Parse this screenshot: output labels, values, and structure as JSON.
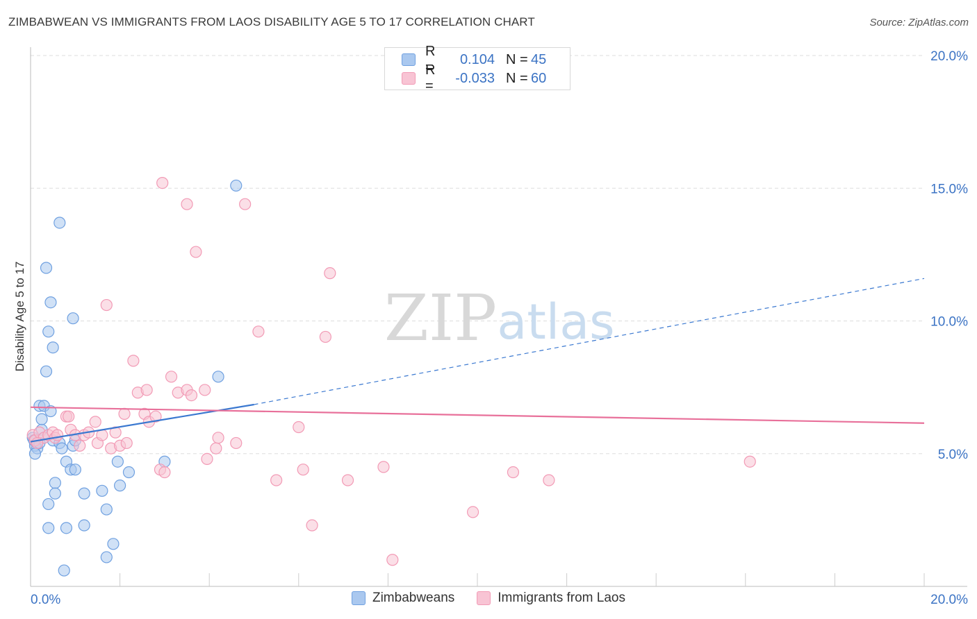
{
  "title": "ZIMBABWEAN VS IMMIGRANTS FROM LAOS DISABILITY AGE 5 TO 17 CORRELATION CHART",
  "source": "Source: ZipAtlas.com",
  "watermark": {
    "zip": "ZIP",
    "atlas": "atlas"
  },
  "legend": {
    "series1": {
      "r_label": "R =",
      "r_value": "0.104",
      "n_label": "N =",
      "n_value": "45"
    },
    "series2": {
      "r_label": "R =",
      "r_value": "-0.033",
      "n_label": "N =",
      "n_value": "60"
    }
  },
  "chart_data": {
    "type": "scatter",
    "title": "ZIMBABWEAN VS IMMIGRANTS FROM LAOS DISABILITY AGE 5 TO 17 CORRELATION CHART",
    "xlabel": "",
    "ylabel": "Disability Age 5 to 17",
    "xlim": [
      0,
      20
    ],
    "ylim": [
      0,
      20
    ],
    "x_tick_labels": [
      "0.0%",
      "20.0%"
    ],
    "y_ticks": [
      5,
      10,
      15,
      20
    ],
    "y_tick_labels": [
      "5.0%",
      "10.0%",
      "15.0%",
      "20.0%"
    ],
    "grid": true,
    "series": [
      {
        "name": "Zimbabweans",
        "color": "#6fa0e0",
        "fill": "#aac8ef",
        "line_color": "#3a78d0",
        "trend": {
          "x0": 0.0,
          "y0": 5.45,
          "x1": 5.0,
          "y1": 6.85,
          "dash_x1": 20.0,
          "dash_y1": 11.6
        },
        "points": [
          [
            0.05,
            5.6
          ],
          [
            0.1,
            5.3
          ],
          [
            0.08,
            5.5
          ],
          [
            0.15,
            5.2
          ],
          [
            0.1,
            5.0
          ],
          [
            0.2,
            5.4
          ],
          [
            0.25,
            5.9
          ],
          [
            0.2,
            6.8
          ],
          [
            0.3,
            6.8
          ],
          [
            0.25,
            6.3
          ],
          [
            0.45,
            6.6
          ],
          [
            0.35,
            8.1
          ],
          [
            0.4,
            9.6
          ],
          [
            0.5,
            9.0
          ],
          [
            0.35,
            12.0
          ],
          [
            0.45,
            10.7
          ],
          [
            0.65,
            13.7
          ],
          [
            0.95,
            10.1
          ],
          [
            0.5,
            5.5
          ],
          [
            0.65,
            5.4
          ],
          [
            0.7,
            5.2
          ],
          [
            0.8,
            4.7
          ],
          [
            0.9,
            4.4
          ],
          [
            0.95,
            5.3
          ],
          [
            1.0,
            5.5
          ],
          [
            1.0,
            4.4
          ],
          [
            0.55,
            3.9
          ],
          [
            0.55,
            3.5
          ],
          [
            0.4,
            3.1
          ],
          [
            0.4,
            2.2
          ],
          [
            0.8,
            2.2
          ],
          [
            1.2,
            2.3
          ],
          [
            1.2,
            3.5
          ],
          [
            1.6,
            3.6
          ],
          [
            1.7,
            2.9
          ],
          [
            1.95,
            4.7
          ],
          [
            2.0,
            3.8
          ],
          [
            2.2,
            4.3
          ],
          [
            1.85,
            1.6
          ],
          [
            1.7,
            1.1
          ],
          [
            0.75,
            0.6
          ],
          [
            3.0,
            4.7
          ],
          [
            4.2,
            7.9
          ],
          [
            4.6,
            15.1
          ],
          [
            0.3,
            5.6
          ]
        ]
      },
      {
        "name": "Immigrants from Laos",
        "color": "#f29ab5",
        "fill": "#f8c4d4",
        "line_color": "#e8709a",
        "trend": {
          "x0": 0.0,
          "y0": 6.75,
          "x1": 20.0,
          "y1": 6.15
        },
        "points": [
          [
            0.05,
            5.7
          ],
          [
            0.1,
            5.5
          ],
          [
            0.2,
            5.8
          ],
          [
            0.3,
            5.6
          ],
          [
            0.4,
            5.7
          ],
          [
            0.5,
            5.8
          ],
          [
            0.55,
            5.6
          ],
          [
            0.6,
            5.7
          ],
          [
            0.8,
            6.4
          ],
          [
            0.85,
            6.4
          ],
          [
            0.9,
            5.9
          ],
          [
            1.0,
            5.7
          ],
          [
            1.1,
            5.3
          ],
          [
            1.2,
            5.7
          ],
          [
            1.3,
            5.8
          ],
          [
            1.45,
            6.2
          ],
          [
            1.5,
            5.4
          ],
          [
            1.6,
            5.7
          ],
          [
            1.8,
            5.2
          ],
          [
            1.9,
            5.8
          ],
          [
            2.0,
            5.3
          ],
          [
            2.1,
            6.5
          ],
          [
            2.15,
            5.4
          ],
          [
            2.3,
            8.5
          ],
          [
            2.4,
            7.3
          ],
          [
            2.55,
            6.5
          ],
          [
            2.6,
            7.4
          ],
          [
            2.65,
            6.2
          ],
          [
            2.8,
            6.4
          ],
          [
            2.9,
            4.4
          ],
          [
            3.0,
            4.3
          ],
          [
            3.15,
            7.9
          ],
          [
            3.3,
            7.3
          ],
          [
            3.5,
            7.4
          ],
          [
            3.6,
            7.2
          ],
          [
            3.9,
            7.4
          ],
          [
            3.95,
            4.8
          ],
          [
            4.15,
            5.2
          ],
          [
            4.2,
            5.6
          ],
          [
            4.6,
            5.4
          ],
          [
            2.95,
            15.2
          ],
          [
            3.5,
            14.4
          ],
          [
            3.7,
            12.6
          ],
          [
            4.8,
            14.4
          ],
          [
            5.1,
            9.6
          ],
          [
            6.6,
            9.4
          ],
          [
            6.7,
            11.8
          ],
          [
            1.7,
            10.6
          ],
          [
            5.5,
            4.0
          ],
          [
            6.1,
            4.4
          ],
          [
            6.3,
            2.3
          ],
          [
            7.1,
            4.0
          ],
          [
            7.9,
            4.5
          ],
          [
            8.1,
            1.0
          ],
          [
            9.9,
            2.8
          ],
          [
            10.8,
            4.3
          ],
          [
            11.6,
            4.0
          ],
          [
            16.1,
            4.7
          ],
          [
            6.0,
            6.0
          ],
          [
            0.15,
            5.4
          ]
        ]
      }
    ]
  }
}
